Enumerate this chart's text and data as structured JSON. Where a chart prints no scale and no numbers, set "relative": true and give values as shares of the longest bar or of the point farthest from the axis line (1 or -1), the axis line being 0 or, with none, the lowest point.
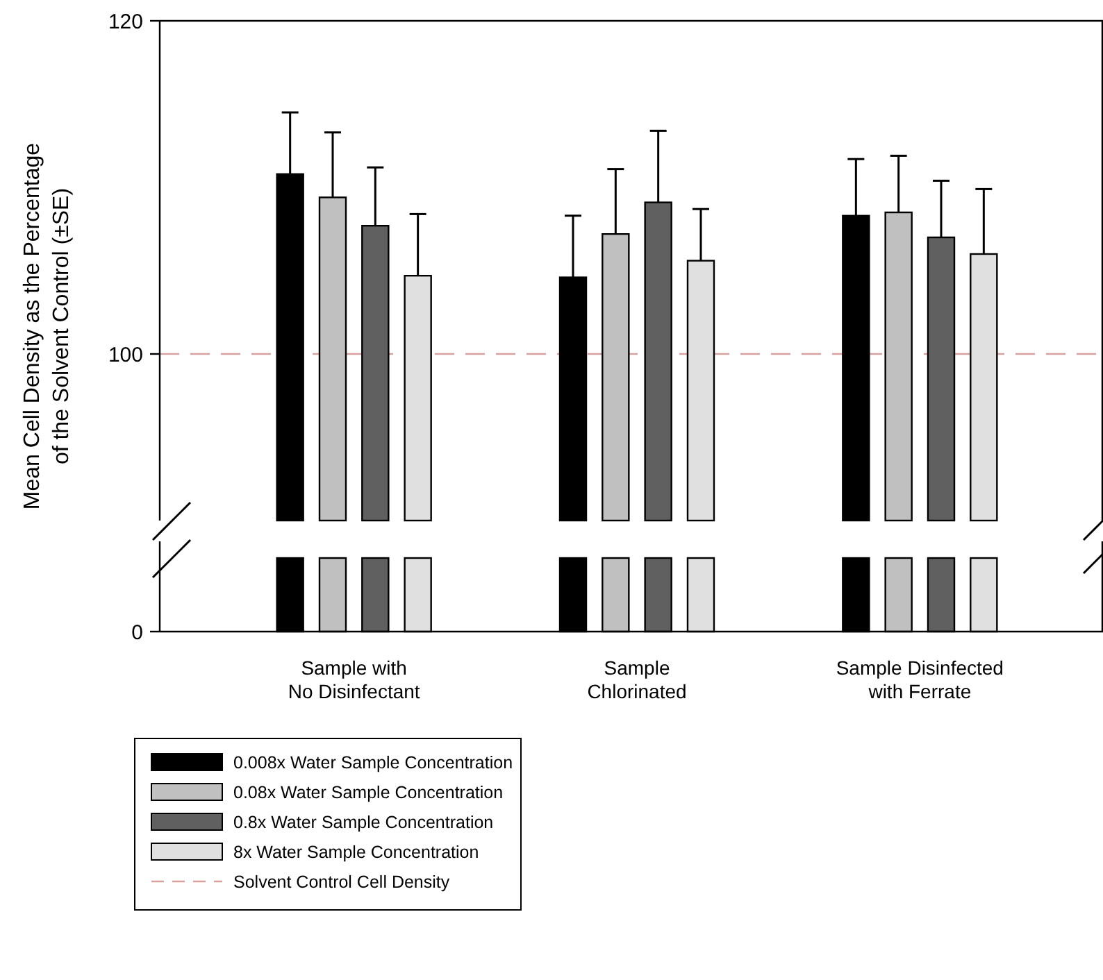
{
  "chart_data": [
    {
      "type": "bar",
      "ylabel": "Mean Cell Density as the Percentage\nof the Solvent Control (±SE)",
      "categories": [
        "Sample with\nNo Disinfectant",
        "Sample\nChlorinated",
        "Sample Disinfected\nwith Ferrate"
      ],
      "ylim": [
        90,
        120
      ],
      "yticks": [
        100,
        120
      ],
      "legend": "bottom",
      "series": [
        {
          "name": "0.008x Water Sample Concentration",
          "color": "#000000",
          "values": [
            110.8,
            104.6,
            108.3
          ],
          "errors": [
            3.7,
            3.7,
            3.4
          ]
        },
        {
          "name": "0.08x Water Sample Concentration",
          "color": "#c0c0c0",
          "values": [
            109.4,
            107.2,
            108.5
          ],
          "errors": [
            3.9,
            3.9,
            3.4
          ]
        },
        {
          "name": "0.8x Water Sample Concentration",
          "color": "#606060",
          "values": [
            107.7,
            109.1,
            107.0
          ],
          "errors": [
            3.5,
            4.3,
            3.4
          ]
        },
        {
          "name": "8x Water Sample Concentration",
          "color": "#e0e0e0",
          "values": [
            104.7,
            105.6,
            106.0
          ],
          "errors": [
            3.7,
            3.1,
            3.9
          ]
        }
      ],
      "ref_lines": [
        {
          "axis": "y",
          "value": 100,
          "label": "Solvent Control Cell Density",
          "color": "#d9a0a0",
          "line_style": "dashed"
        }
      ]
    },
    {
      "type": "bar",
      "categories": [
        null,
        null,
        null
      ],
      "relative": true,
      "tick_labels": "y",
      "annotations": [
        "0"
      ],
      "series": [
        {
          "color": "#000000",
          "values": [
            1,
            1,
            1
          ]
        },
        {
          "color": "#c0c0c0",
          "values": [
            1,
            1,
            1
          ]
        },
        {
          "color": "#606060",
          "values": [
            1,
            1,
            1
          ]
        },
        {
          "color": "#e0e0e0",
          "values": [
            1,
            1,
            1
          ]
        }
      ]
    }
  ]
}
